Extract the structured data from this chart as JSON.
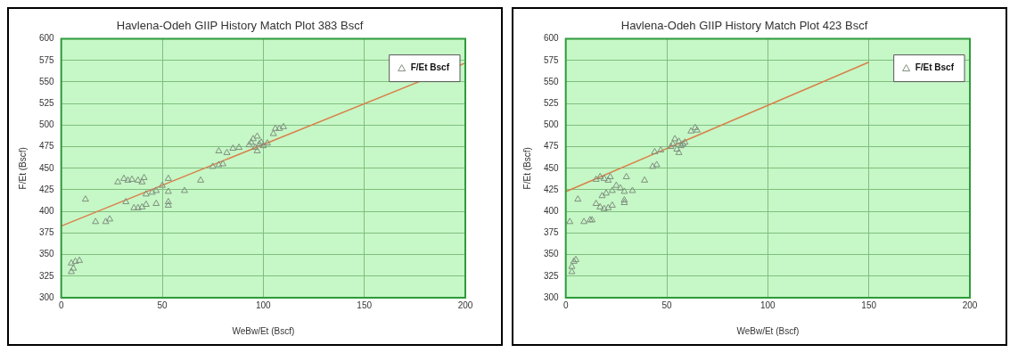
{
  "chart_data": [
    {
      "type": "scatter",
      "title": "Havlena-Odeh GIIP History Match Plot 383 Bscf",
      "xlabel": "WeBw/Et (Bscf)",
      "ylabel": "F/Et (Bscf)",
      "xlim": [
        0,
        200
      ],
      "ylim": [
        300,
        600
      ],
      "xticks": [
        0,
        50,
        100,
        150,
        200
      ],
      "yticks": [
        300,
        325,
        350,
        375,
        400,
        425,
        450,
        475,
        500,
        525,
        550,
        575,
        600
      ],
      "grid": true,
      "legend": "top right",
      "series": [
        {
          "name": "F/Et Bscf",
          "marker": "triangle",
          "color": "#7f8f7f",
          "x": [
            5,
            6,
            5,
            7,
            9,
            12,
            17,
            22,
            24,
            28,
            31,
            33,
            35,
            38,
            40,
            41,
            32,
            36,
            38,
            40,
            42,
            47,
            42,
            45,
            47,
            50,
            53,
            53,
            53,
            53,
            61,
            69,
            75,
            78,
            80,
            78,
            82,
            85,
            88,
            93,
            94,
            95,
            96,
            97,
            97,
            98,
            99,
            100,
            102,
            105,
            106,
            108,
            110
          ],
          "values": [
            330,
            334,
            340,
            342,
            343,
            414,
            388,
            388,
            391,
            434,
            438,
            436,
            437,
            436,
            434,
            439,
            411,
            404,
            404,
            405,
            408,
            409,
            420,
            422,
            424,
            430,
            438,
            423,
            407,
            411,
            424,
            436,
            452,
            454,
            455,
            470,
            468,
            473,
            474,
            477,
            480,
            484,
            474,
            470,
            487,
            478,
            480,
            476,
            479,
            490,
            496,
            496,
            498
          ]
        },
        {
          "type": "line",
          "marker": "none",
          "color": "#d9804a",
          "x": [
            0,
            200
          ],
          "values": [
            383,
            572
          ]
        }
      ]
    },
    {
      "type": "scatter",
      "title": "Havlena-Odeh GIIP History Match Plot 423 Bscf",
      "xlabel": "WeBw/Et (Bscf)",
      "ylabel": "F/Et (Bscf)",
      "xlim": [
        0,
        200
      ],
      "ylim": [
        300,
        600
      ],
      "xticks": [
        0,
        50,
        100,
        150,
        200
      ],
      "yticks": [
        300,
        325,
        350,
        375,
        400,
        425,
        450,
        475,
        500,
        525,
        550,
        575,
        600
      ],
      "grid": true,
      "legend": "top right",
      "series": [
        {
          "name": "F/Et Bscf",
          "marker": "triangle",
          "color": "#7f8f7f",
          "x": [
            3,
            3,
            4,
            5,
            2,
            6,
            9,
            12,
            13,
            15,
            17,
            19,
            21,
            22,
            15,
            17,
            19,
            21,
            23,
            18,
            20,
            23,
            25,
            30,
            27,
            29,
            33,
            29,
            29,
            39,
            43,
            45,
            44,
            47,
            52,
            53,
            54,
            55,
            56,
            56,
            57,
            58,
            59,
            62,
            64,
            65
          ],
          "values": [
            330,
            336,
            342,
            344,
            388,
            414,
            388,
            390,
            390,
            437,
            440,
            438,
            436,
            440,
            409,
            405,
            403,
            404,
            407,
            418,
            421,
            424,
            430,
            440,
            427,
            423,
            424,
            410,
            413,
            436,
            452,
            454,
            469,
            471,
            475,
            478,
            484,
            472,
            468,
            481,
            476,
            478,
            480,
            493,
            497,
            494
          ]
        },
        {
          "type": "line",
          "marker": "none",
          "color": "#d9804a",
          "x": [
            0,
            150
          ],
          "values": [
            423,
            573
          ]
        }
      ]
    }
  ]
}
